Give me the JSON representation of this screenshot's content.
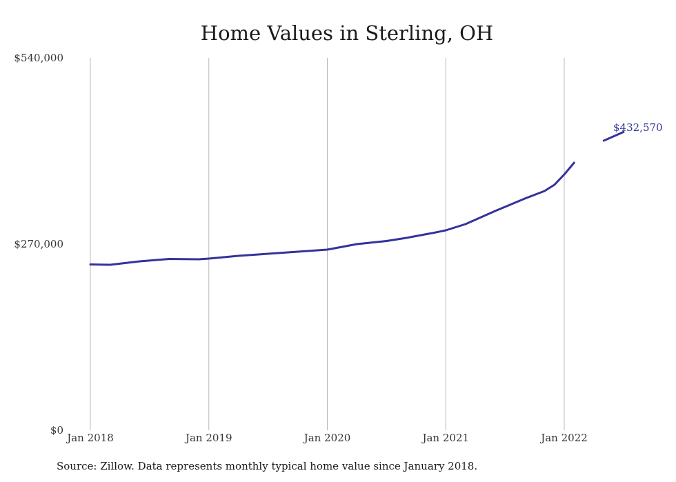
{
  "chart_data": {
    "type": "line",
    "title": "Home Values in Sterling, OH",
    "xlabel": "",
    "ylabel": "",
    "ylim": [
      0,
      540000
    ],
    "y_ticks": [
      0,
      270000,
      540000
    ],
    "y_tick_labels": [
      "$0",
      "$270,000",
      "$540,000"
    ],
    "x_ticks": [
      "2018-01",
      "2019-01",
      "2020-01",
      "2021-01",
      "2022-01"
    ],
    "x_tick_labels": [
      "Jan 2018",
      "Jan 2019",
      "Jan 2020",
      "Jan 2021",
      "Jan 2022"
    ],
    "grid": "vertical",
    "line_color": "#33339a",
    "end_label": "$432,570",
    "source_note": "Source: Zillow. Data represents monthly typical home value since January 2018.",
    "series": [
      {
        "segments": [
          {
            "x": [
              "2018-01",
              "2018-03",
              "2018-06",
              "2018-09",
              "2018-12",
              "2019-01",
              "2019-04",
              "2019-07",
              "2019-10",
              "2019-12",
              "2020-01",
              "2020-04",
              "2020-07",
              "2020-09",
              "2020-12",
              "2021-01",
              "2021-03",
              "2021-06",
              "2021-09",
              "2021-11",
              "2021-12",
              "2022-01",
              "2022-02"
            ],
            "y": [
              240500,
              240000,
              245000,
              248500,
              248000,
              249000,
              253000,
              256000,
              259000,
              261000,
              262000,
              270000,
              274500,
              279000,
              287000,
              290000,
              299000,
              318000,
              336000,
              347000,
              356000,
              371000,
              388000
            ]
          },
          {
            "x": [
              "2022-05",
              "2022-07"
            ],
            "y": [
              420000,
              432570
            ]
          }
        ]
      }
    ]
  }
}
